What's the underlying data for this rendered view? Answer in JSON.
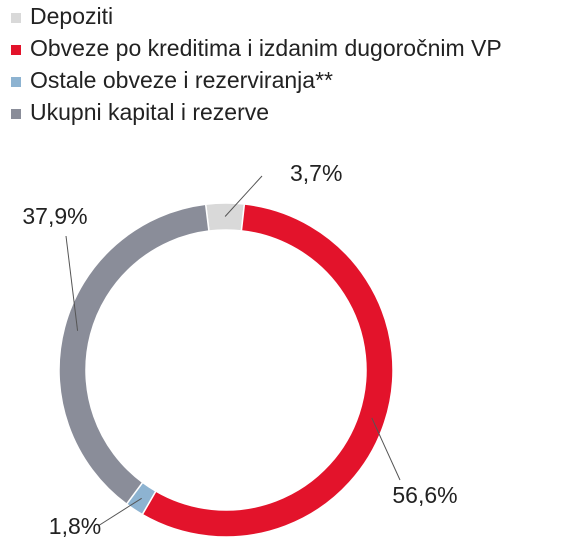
{
  "chart_data": {
    "type": "donut",
    "categories": [
      "Depoziti",
      "Obveze po kreditima i izdanim dugoročnim VP",
      "Ostale obveze i rezerviranja**",
      "Ukupni kapital i rezerve"
    ],
    "values": [
      3.7,
      56.6,
      1.8,
      37.9
    ],
    "value_labels": [
      "3,7%",
      "56,6%",
      "1,8%",
      "37,9%"
    ],
    "colors": [
      "#d9d9d9",
      "#e3132b",
      "#8db3d1",
      "#8a8d99"
    ],
    "legend": "top-left"
  }
}
